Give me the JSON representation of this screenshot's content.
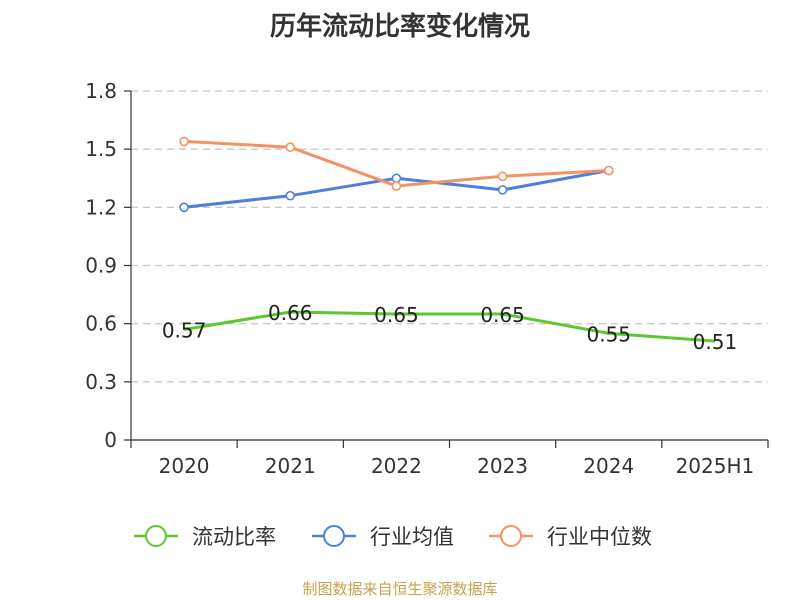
{
  "title": "历年流动比率变化情况",
  "source": "制图数据来自恒生聚源数据库",
  "chart_data": {
    "type": "line",
    "categories": [
      "2020",
      "2021",
      "2022",
      "2023",
      "2024",
      "2025H1"
    ],
    "y_ticks": [
      "0",
      "0.3",
      "0.6",
      "0.9",
      "1.2",
      "1.5",
      "1.8"
    ],
    "ylim": [
      0,
      1.8
    ],
    "grid": "horizontal dashed",
    "legend_position": "bottom",
    "series": [
      {
        "name": "流动比率",
        "color": "#5cc72f",
        "values": [
          0.57,
          0.66,
          0.65,
          0.65,
          0.55,
          0.51
        ],
        "labels": [
          "0.57",
          "0.66",
          "0.65",
          "0.65",
          "0.55",
          "0.51"
        ],
        "markers": false
      },
      {
        "name": "行业均值",
        "color": "#4e7fde",
        "values": [
          1.2,
          1.26,
          1.35,
          1.29,
          1.39,
          null
        ],
        "markers": true
      },
      {
        "name": "行业中位数",
        "color": "#f49262",
        "values": [
          1.54,
          1.51,
          1.31,
          1.36,
          1.39,
          null
        ],
        "markers": true
      }
    ]
  }
}
